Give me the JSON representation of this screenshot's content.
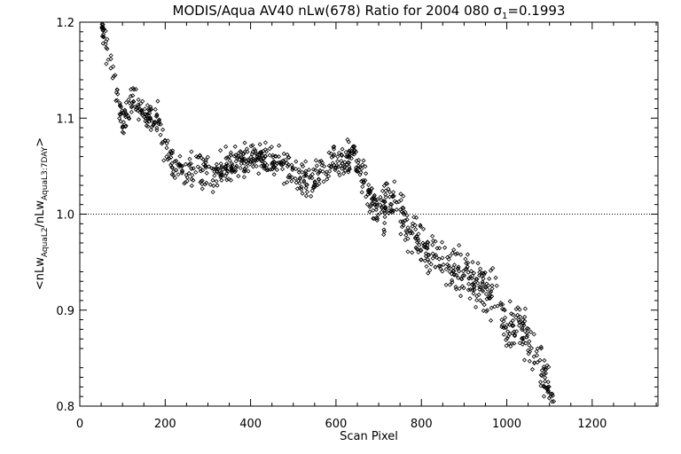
{
  "chart_data": {
    "type": "scatter",
    "title_main": "MODIS/Aqua AV40 nLw(678) Ratio for 2004 080 ",
    "title_sigma": "σ",
    "title_sigma_sub": "1",
    "title_value": "=0.1993",
    "xlabel": "Scan Pixel",
    "ylabel_parts": {
      "open": "<nLw",
      "sub1": "AquaL2",
      "mid": "/nLw",
      "sub2": "AquaL3:7DAY",
      "close": ">"
    },
    "xlim": [
      0,
      1354
    ],
    "ylim": [
      0.8,
      1.2
    ],
    "xticks": [
      0,
      200,
      400,
      600,
      800,
      1000,
      1200
    ],
    "xtick_labels": [
      "0",
      "200",
      "400",
      "600",
      "800",
      "1000",
      "1200"
    ],
    "yticks": [
      0.8,
      0.9,
      1.0,
      1.1,
      1.2
    ],
    "ytick_labels": [
      "0.8",
      "0.9",
      "1.0",
      "1.1",
      "1.2"
    ],
    "reference_line": 1.0,
    "marker": "diamond",
    "color": "#000000",
    "trend_x": [
      50,
      60,
      75,
      90,
      100,
      110,
      125,
      140,
      160,
      180,
      200,
      220,
      250,
      280,
      310,
      340,
      380,
      420,
      460,
      500,
      540,
      570,
      600,
      630,
      640,
      660,
      690,
      700,
      720,
      740,
      760,
      780,
      800,
      830,
      860,
      900,
      940,
      980,
      1000,
      1020,
      1040,
      1060,
      1080,
      1100,
      1110
    ],
    "trend_y": [
      1.2,
      1.18,
      1.15,
      1.12,
      1.09,
      1.11,
      1.12,
      1.11,
      1.1,
      1.1,
      1.07,
      1.05,
      1.045,
      1.05,
      1.04,
      1.05,
      1.055,
      1.06,
      1.055,
      1.04,
      1.035,
      1.045,
      1.05,
      1.055,
      1.065,
      1.04,
      1.01,
      1.0,
      1.015,
      1.01,
      0.99,
      0.98,
      0.97,
      0.955,
      0.945,
      0.935,
      0.925,
      0.91,
      0.88,
      0.885,
      0.875,
      0.855,
      0.84,
      0.815,
      0.8
    ],
    "n_points": 1050,
    "seed": 20040080
  }
}
